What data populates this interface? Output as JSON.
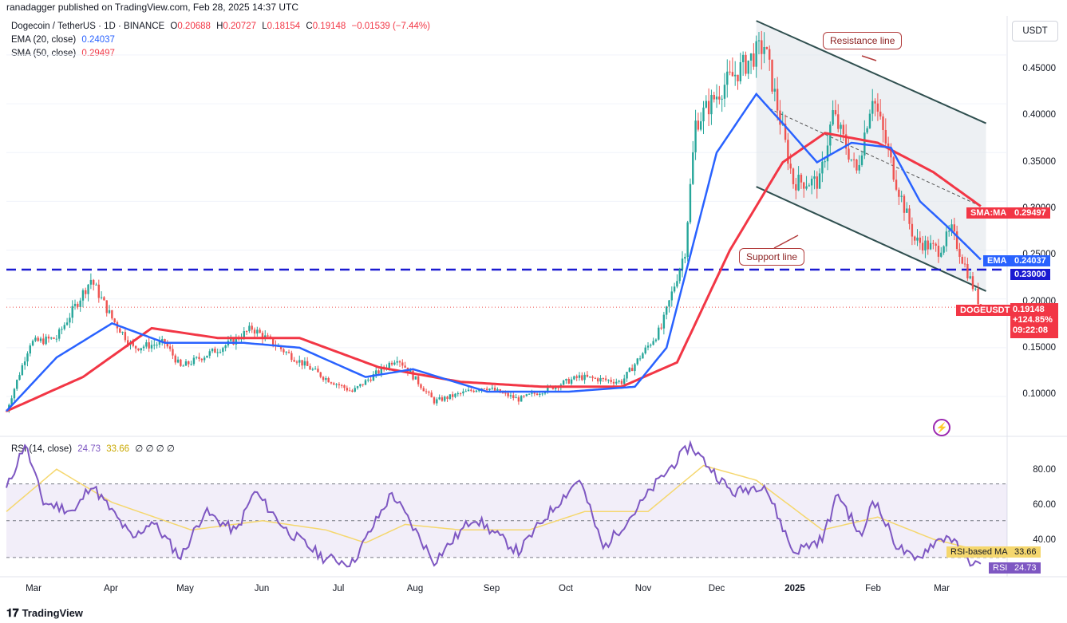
{
  "header": {
    "published": "ranadagger published on TradingView.com, Feb 28, 2025 14:37 UTC"
  },
  "legend": {
    "symbol": "Dogecoin / TetherUS · 1D · BINANCE",
    "o_label": "O",
    "o": "0.20688",
    "h_label": "H",
    "h": "0.20727",
    "l_label": "L",
    "l": "0.18154",
    "c_label": "C",
    "c": "0.19148",
    "change": "−0.01539 (−7.44%)",
    "ema_label": "EMA (20, close)",
    "ema_value": "0.24037",
    "sma_label": "SMA (50, close)",
    "sma_value": "0.29497",
    "rsi_label": "RSI (14, close)",
    "rsi_value": "24.73",
    "rsi_ma_value": "33.66",
    "rsi_extra": "∅ ∅ ∅ ∅"
  },
  "currency_button": "USDT",
  "price_axis": [
    "0.45000",
    "0.40000",
    "0.35000",
    "0.30000",
    "0.25000",
    "0.20000",
    "0.15000",
    "0.10000"
  ],
  "rsi_axis": [
    "80.00",
    "60.00",
    "40.00"
  ],
  "time_axis": [
    "Mar",
    "Apr",
    "May",
    "Jun",
    "Jul",
    "Aug",
    "Sep",
    "Oct",
    "Nov",
    "Dec",
    "2025",
    "Feb",
    "Mar"
  ],
  "labels": {
    "sma": "SMA:MA",
    "sma_val": "0.29497",
    "ema": "EMA",
    "ema_val": "0.24037",
    "level": "0.23000",
    "symbol": "DOGEUSDT",
    "price": "0.19148",
    "pct": "+124.85%",
    "timer": "09:22:08",
    "rsi_ma": "RSI-based MA",
    "rsi_ma_val": "33.66",
    "rsi": "RSI",
    "rsi_val": "24.73"
  },
  "annotations": {
    "resistance": "Resistance line",
    "support": "Support line"
  },
  "footer": {
    "brand": "TradingView"
  },
  "colors": {
    "up": "#26a69a",
    "down": "#ef5350",
    "ema": "#2962ff",
    "sma": "#f23645",
    "rsi": "#7e57c2",
    "rsi_ma": "#f5d76e",
    "channel": "#2f4f4f",
    "level": "#1b1bd1"
  },
  "chart_data": {
    "type": "candlestick",
    "title": "Dogecoin / TetherUS · 1D · BINANCE",
    "ylim": [
      0.06,
      0.49
    ],
    "rsi_ylim": [
      20,
      95
    ],
    "horizontal_level": 0.23,
    "price_anchors": [
      [
        "2024-02-25",
        0.085
      ],
      [
        "2024-03-05",
        0.155
      ],
      [
        "2024-03-15",
        0.16
      ],
      [
        "2024-03-28",
        0.22
      ],
      [
        "2024-04-05",
        0.18
      ],
      [
        "2024-04-13",
        0.15
      ],
      [
        "2024-04-25",
        0.155
      ],
      [
        "2024-05-01",
        0.13
      ],
      [
        "2024-05-20",
        0.155
      ],
      [
        "2024-05-28",
        0.17
      ],
      [
        "2024-06-10",
        0.145
      ],
      [
        "2024-06-24",
        0.12
      ],
      [
        "2024-07-05",
        0.105
      ],
      [
        "2024-07-22",
        0.14
      ],
      [
        "2024-08-05",
        0.095
      ],
      [
        "2024-08-24",
        0.11
      ],
      [
        "2024-09-06",
        0.097
      ],
      [
        "2024-09-29",
        0.12
      ],
      [
        "2024-10-15",
        0.115
      ],
      [
        "2024-10-30",
        0.17
      ],
      [
        "2024-11-08",
        0.25
      ],
      [
        "2024-11-12",
        0.38
      ],
      [
        "2024-11-23",
        0.42
      ],
      [
        "2024-12-08",
        0.46
      ],
      [
        "2024-12-19",
        0.32
      ],
      [
        "2024-12-29",
        0.32
      ],
      [
        "2025-01-03",
        0.39
      ],
      [
        "2025-01-12",
        0.33
      ],
      [
        "2025-01-18",
        0.41
      ],
      [
        "2025-01-27",
        0.32
      ],
      [
        "2025-02-03",
        0.26
      ],
      [
        "2025-02-12",
        0.25
      ],
      [
        "2025-02-17",
        0.27
      ],
      [
        "2025-02-24",
        0.22
      ],
      [
        "2025-02-28",
        0.19148
      ]
    ],
    "ema_anchors": [
      [
        "2024-02-25",
        0.085
      ],
      [
        "2024-03-15",
        0.14
      ],
      [
        "2024-04-05",
        0.175
      ],
      [
        "2024-04-25",
        0.155
      ],
      [
        "2024-05-25",
        0.155
      ],
      [
        "2024-06-15",
        0.15
      ],
      [
        "2024-07-10",
        0.12
      ],
      [
        "2024-07-28",
        0.128
      ],
      [
        "2024-08-25",
        0.105
      ],
      [
        "2024-09-25",
        0.105
      ],
      [
        "2024-10-20",
        0.11
      ],
      [
        "2024-11-01",
        0.15
      ],
      [
        "2024-11-20",
        0.35
      ],
      [
        "2024-12-05",
        0.41
      ],
      [
        "2024-12-15",
        0.38
      ],
      [
        "2024-12-28",
        0.34
      ],
      [
        "2025-01-10",
        0.36
      ],
      [
        "2025-01-25",
        0.355
      ],
      [
        "2025-02-05",
        0.3
      ],
      [
        "2025-02-15",
        0.275
      ],
      [
        "2025-02-28",
        0.24037
      ]
    ],
    "sma_anchors": [
      [
        "2024-02-25",
        0.085
      ],
      [
        "2024-03-25",
        0.12
      ],
      [
        "2024-04-20",
        0.17
      ],
      [
        "2024-05-15",
        0.16
      ],
      [
        "2024-06-15",
        0.16
      ],
      [
        "2024-07-15",
        0.13
      ],
      [
        "2024-08-15",
        0.115
      ],
      [
        "2024-09-15",
        0.11
      ],
      [
        "2024-10-15",
        0.11
      ],
      [
        "2024-11-05",
        0.135
      ],
      [
        "2024-11-25",
        0.25
      ],
      [
        "2024-12-15",
        0.34
      ],
      [
        "2024-12-31",
        0.37
      ],
      [
        "2025-01-20",
        0.36
      ],
      [
        "2025-02-10",
        0.33
      ],
      [
        "2025-02-28",
        0.29497
      ]
    ],
    "rsi_anchors": [
      [
        "2024-02-25",
        67
      ],
      [
        "2024-03-03",
        92
      ],
      [
        "2024-03-10",
        60
      ],
      [
        "2024-03-22",
        55
      ],
      [
        "2024-03-28",
        70
      ],
      [
        "2024-04-13",
        40
      ],
      [
        "2024-04-20",
        50
      ],
      [
        "2024-05-01",
        30
      ],
      [
        "2024-05-10",
        55
      ],
      [
        "2024-05-22",
        44
      ],
      [
        "2024-05-29",
        66
      ],
      [
        "2024-06-10",
        45
      ],
      [
        "2024-06-24",
        30
      ],
      [
        "2024-07-05",
        27
      ],
      [
        "2024-07-20",
        65
      ],
      [
        "2024-08-05",
        28
      ],
      [
        "2024-08-20",
        52
      ],
      [
        "2024-09-06",
        33
      ],
      [
        "2024-09-15",
        50
      ],
      [
        "2024-09-29",
        73
      ],
      [
        "2024-10-08",
        35
      ],
      [
        "2024-10-20",
        55
      ],
      [
        "2024-10-28",
        70
      ],
      [
        "2024-11-10",
        91
      ],
      [
        "2024-11-26",
        65
      ],
      [
        "2024-12-08",
        70
      ],
      [
        "2024-12-19",
        33
      ],
      [
        "2024-12-30",
        40
      ],
      [
        "2025-01-05",
        65
      ],
      [
        "2025-01-14",
        40
      ],
      [
        "2025-01-18",
        63
      ],
      [
        "2025-01-27",
        37
      ],
      [
        "2025-02-03",
        28
      ],
      [
        "2025-02-10",
        38
      ],
      [
        "2025-02-16",
        42
      ],
      [
        "2025-02-22",
        30
      ],
      [
        "2025-02-28",
        24.73
      ]
    ],
    "rsi_ma_anchors": [
      [
        "2024-02-25",
        55
      ],
      [
        "2024-03-15",
        78
      ],
      [
        "2024-04-05",
        60
      ],
      [
        "2024-05-05",
        45
      ],
      [
        "2024-06-01",
        50
      ],
      [
        "2024-06-25",
        45
      ],
      [
        "2024-07-10",
        38
      ],
      [
        "2024-07-25",
        48
      ],
      [
        "2024-08-15",
        45
      ],
      [
        "2024-09-10",
        45
      ],
      [
        "2024-10-01",
        55
      ],
      [
        "2024-10-25",
        55
      ],
      [
        "2024-11-15",
        80
      ],
      [
        "2024-12-05",
        72
      ],
      [
        "2024-12-30",
        45
      ],
      [
        "2025-01-20",
        52
      ],
      [
        "2025-02-10",
        40
      ],
      [
        "2025-02-28",
        33.66
      ]
    ],
    "resistance_channel": {
      "start": [
        "2024-12-05",
        0.485
      ],
      "end": [
        "2025-03-02",
        0.38
      ]
    },
    "support_channel": {
      "start": [
        "2024-12-05",
        0.315
      ],
      "end": [
        "2025-03-02",
        0.208
      ]
    },
    "mid_channel": {
      "start": [
        "2024-12-10",
        0.395
      ],
      "end": [
        "2025-02-28",
        0.295
      ]
    }
  }
}
